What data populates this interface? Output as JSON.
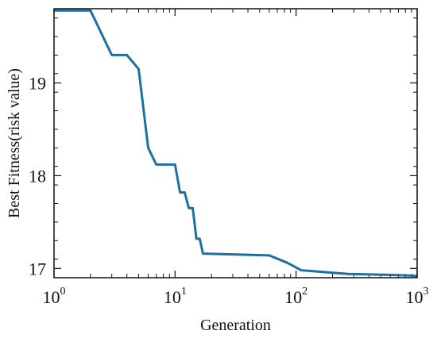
{
  "chart_data": {
    "type": "line",
    "title": "",
    "xlabel": "Generation",
    "ylabel": "Best Fitness(risk value)",
    "x_scale": "log",
    "xlim": [
      1,
      1000
    ],
    "ylim": [
      16.9,
      19.8
    ],
    "grid": false,
    "x_ticks": [
      {
        "value": 1,
        "base": "10",
        "exp": "0"
      },
      {
        "value": 10,
        "base": "10",
        "exp": "1"
      },
      {
        "value": 100,
        "base": "10",
        "exp": "2"
      },
      {
        "value": 1000,
        "base": "10",
        "exp": "3"
      }
    ],
    "y_ticks": [
      {
        "value": 17,
        "label": "17"
      },
      {
        "value": 18,
        "label": "18"
      },
      {
        "value": 19,
        "label": "19"
      }
    ],
    "series": [
      {
        "color": "#1f6fa0",
        "x": [
          1,
          2,
          3,
          4,
          5,
          6,
          7,
          10,
          11,
          12,
          13,
          14,
          15,
          16,
          17,
          60,
          85,
          110,
          220,
          270,
          620,
          1000
        ],
        "y": [
          19.78,
          19.78,
          19.3,
          19.3,
          19.15,
          18.3,
          18.12,
          18.12,
          17.82,
          17.82,
          17.65,
          17.65,
          17.32,
          17.32,
          17.16,
          17.14,
          17.06,
          16.98,
          16.95,
          16.94,
          16.93,
          16.92
        ]
      }
    ]
  }
}
